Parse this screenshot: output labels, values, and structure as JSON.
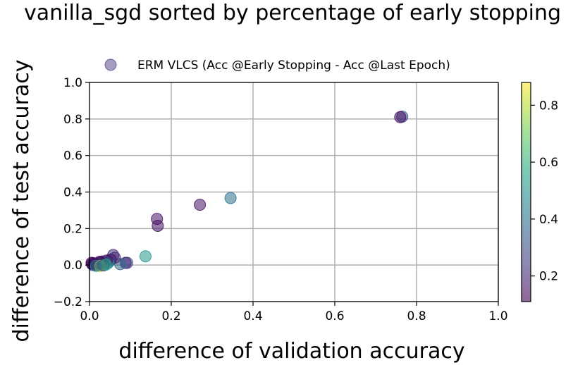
{
  "chart_data": {
    "type": "scatter",
    "title": "vanilla_sgd sorted by percentage of early stopping",
    "xlabel": "difference of validation accuracy",
    "ylabel": "difference of test accuracy",
    "xlim": [
      0.0,
      1.0
    ],
    "ylim": [
      -0.2,
      1.0
    ],
    "xticks": [
      0.0,
      0.2,
      0.4,
      0.6,
      0.8,
      1.0
    ],
    "xtick_labels": [
      "0.0",
      "0.2",
      "0.4",
      "0.6",
      "0.8",
      "1.0"
    ],
    "yticks": [
      -0.2,
      0.0,
      0.2,
      0.4,
      0.6,
      0.8,
      1.0
    ],
    "ytick_labels": [
      "−0.2",
      "0.0",
      "0.2",
      "0.4",
      "0.6",
      "0.8",
      "1.0"
    ],
    "grid": true,
    "legend": {
      "placement": "top-center",
      "entries": [
        {
          "label": "ERM VLCS (Acc @Early Stopping - Acc @Last Epoch)",
          "color": "#5b4a8a"
        }
      ]
    },
    "colorbar": {
      "colormap": "viridis",
      "range": [
        0.11,
        0.88
      ],
      "ticks": [
        0.2,
        0.4,
        0.6,
        0.8
      ],
      "tick_labels": [
        "0.2",
        "0.4",
        "0.6",
        "0.8"
      ]
    },
    "marker_alpha": 0.55,
    "series": [
      {
        "points": [
          {
            "x": 0.765,
            "y": 0.813,
            "c": 0.3
          },
          {
            "x": 0.76,
            "y": 0.81,
            "c": 0.14
          },
          {
            "x": 0.345,
            "y": 0.367,
            "c": 0.4
          },
          {
            "x": 0.27,
            "y": 0.33,
            "c": 0.15
          },
          {
            "x": 0.165,
            "y": 0.253,
            "c": 0.15
          },
          {
            "x": 0.167,
            "y": 0.215,
            "c": 0.15
          },
          {
            "x": 0.137,
            "y": 0.048,
            "c": 0.52
          },
          {
            "x": 0.092,
            "y": 0.012,
            "c": 0.28
          },
          {
            "x": 0.088,
            "y": 0.012,
            "c": 0.2
          },
          {
            "x": 0.075,
            "y": 0.005,
            "c": 0.38
          },
          {
            "x": 0.062,
            "y": 0.04,
            "c": 0.18
          },
          {
            "x": 0.058,
            "y": 0.055,
            "c": 0.22
          },
          {
            "x": 0.052,
            "y": 0.03,
            "c": 0.16
          },
          {
            "x": 0.048,
            "y": 0.02,
            "c": 0.25
          },
          {
            "x": 0.045,
            "y": 0.01,
            "c": 0.5
          },
          {
            "x": 0.042,
            "y": 0.025,
            "c": 0.14
          },
          {
            "x": 0.038,
            "y": 0.015,
            "c": 0.3
          },
          {
            "x": 0.035,
            "y": 0.008,
            "c": 0.45
          },
          {
            "x": 0.032,
            "y": 0.02,
            "c": 0.2
          },
          {
            "x": 0.03,
            "y": 0.0,
            "c": 0.72
          },
          {
            "x": 0.028,
            "y": 0.012,
            "c": 0.16
          },
          {
            "x": 0.025,
            "y": 0.018,
            "c": 0.12
          },
          {
            "x": 0.022,
            "y": 0.005,
            "c": 0.35
          },
          {
            "x": 0.02,
            "y": 0.01,
            "c": 0.18
          },
          {
            "x": 0.018,
            "y": 0.002,
            "c": 0.6
          },
          {
            "x": 0.015,
            "y": 0.008,
            "c": 0.14
          },
          {
            "x": 0.012,
            "y": 0.004,
            "c": 0.22
          },
          {
            "x": 0.01,
            "y": 0.01,
            "c": 0.13
          },
          {
            "x": 0.008,
            "y": 0.0,
            "c": 0.3
          },
          {
            "x": 0.006,
            "y": 0.006,
            "c": 0.16
          },
          {
            "x": 0.005,
            "y": 0.012,
            "c": 0.12
          },
          {
            "x": 0.026,
            "y": -0.005,
            "c": 0.8
          },
          {
            "x": 0.034,
            "y": -0.002,
            "c": 0.25
          },
          {
            "x": 0.04,
            "y": 0.002,
            "c": 0.55
          },
          {
            "x": 0.016,
            "y": -0.004,
            "c": 0.4
          }
        ]
      }
    ]
  }
}
